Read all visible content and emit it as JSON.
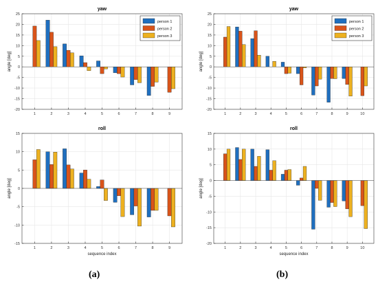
{
  "colors": {
    "person_1": "#1f6fbf",
    "person_2": "#d9541a",
    "person_3": "#edb120"
  },
  "captions": [
    "(a)",
    "(b)"
  ],
  "chart_data": [
    {
      "type": "bar",
      "title": "yaw",
      "xlabel": "",
      "ylabel": "angle [deg]",
      "categories": [
        "1",
        "2",
        "3",
        "4",
        "5",
        "6",
        "7",
        "8",
        "9"
      ],
      "ylim": [
        -20,
        25
      ],
      "yticks": [
        25,
        20,
        15,
        10,
        5,
        0,
        -5,
        -10,
        -15,
        -20
      ],
      "grid": true,
      "legend_position": "top-right",
      "series": [
        {
          "name": "person 1",
          "color": "#1f6fbf",
          "values": [
            0,
            22,
            10.8,
            5.2,
            2.8,
            -2.8,
            -8.5,
            -13.5,
            0
          ]
        },
        {
          "name": "person 2",
          "color": "#d9541a",
          "values": [
            19.2,
            16.3,
            7.8,
            2.0,
            -3.2,
            -3.2,
            -6.0,
            -9.2,
            -12.0
          ]
        },
        {
          "name": "person 3",
          "color": "#edb120",
          "values": [
            12.4,
            9.5,
            6.6,
            -1.8,
            -1.0,
            -4.8,
            -7.5,
            -7.2,
            -10.3
          ]
        }
      ]
    },
    {
      "type": "bar",
      "title": "yaw",
      "xlabel": "",
      "ylabel": "angle [deg]",
      "categories": [
        "1",
        "2",
        "3",
        "4",
        "5",
        "6",
        "7",
        "8",
        "9",
        "10"
      ],
      "ylim": [
        -20,
        25
      ],
      "yticks": [
        25,
        20,
        15,
        10,
        5,
        0,
        -5,
        -10,
        -15,
        -20
      ],
      "grid": true,
      "legend_position": "top-right",
      "series": [
        {
          "name": "person 1",
          "color": "#1f6fbf",
          "values": [
            0,
            18.8,
            13.3,
            5.0,
            2.2,
            -3.2,
            -13.3,
            -16.7,
            -5.5,
            0
          ]
        },
        {
          "name": "person 2",
          "color": "#d9541a",
          "values": [
            14.0,
            16.8,
            17.0,
            0,
            -3.2,
            -8.5,
            -9.0,
            -5.5,
            -8.3,
            -13.6
          ]
        },
        {
          "name": "person 3",
          "color": "#edb120",
          "values": [
            19.0,
            10.5,
            5.5,
            2.6,
            -3.0,
            -0.5,
            -5.8,
            -5.6,
            -13.8,
            -9.0
          ]
        }
      ]
    },
    {
      "type": "bar",
      "title": "roll",
      "xlabel": "sequence index",
      "ylabel": "angle [deg]",
      "categories": [
        "1",
        "2",
        "3",
        "4",
        "5",
        "6",
        "7",
        "8",
        "9"
      ],
      "ylim": [
        -15,
        15
      ],
      "yticks": [
        15,
        10,
        5,
        0,
        -5,
        -10,
        -15
      ],
      "grid": true,
      "series": [
        {
          "name": "person 1",
          "color": "#1f6fbf",
          "values": [
            0,
            10.0,
            10.8,
            4.2,
            0.5,
            -3.8,
            -7.2,
            -7.8,
            0
          ]
        },
        {
          "name": "person 2",
          "color": "#d9541a",
          "values": [
            7.8,
            6.5,
            6.4,
            5.0,
            2.3,
            -2.0,
            -4.8,
            -6.0,
            -7.5
          ]
        },
        {
          "name": "person 3",
          "color": "#edb120",
          "values": [
            10.6,
            9.9,
            5.3,
            2.5,
            -3.3,
            -7.7,
            -10.3,
            -6.0,
            -10.5
          ]
        }
      ]
    },
    {
      "type": "bar",
      "title": "roll",
      "xlabel": "sequence index",
      "ylabel": "angle [deg]",
      "categories": [
        "1",
        "2",
        "3",
        "4",
        "5",
        "6",
        "7",
        "8",
        "9",
        "10"
      ],
      "ylim": [
        -20,
        15
      ],
      "yticks": [
        15,
        10,
        5,
        0,
        -5,
        -10,
        -15,
        -20
      ],
      "grid": true,
      "series": [
        {
          "name": "person 1",
          "color": "#1f6fbf",
          "values": [
            0,
            10.5,
            10.0,
            9.8,
            2.0,
            -1.5,
            -15.5,
            -8.5,
            -6.5,
            0
          ]
        },
        {
          "name": "person 2",
          "color": "#d9541a",
          "values": [
            8.5,
            6.7,
            4.5,
            3.3,
            3.3,
            0.8,
            -2.5,
            -7.0,
            -9.0,
            -8.0
          ]
        },
        {
          "name": "person 3",
          "color": "#edb120",
          "values": [
            10.0,
            10.0,
            7.7,
            6.3,
            3.5,
            4.5,
            -6.3,
            -8.3,
            -11.5,
            -15.3
          ]
        }
      ]
    }
  ]
}
